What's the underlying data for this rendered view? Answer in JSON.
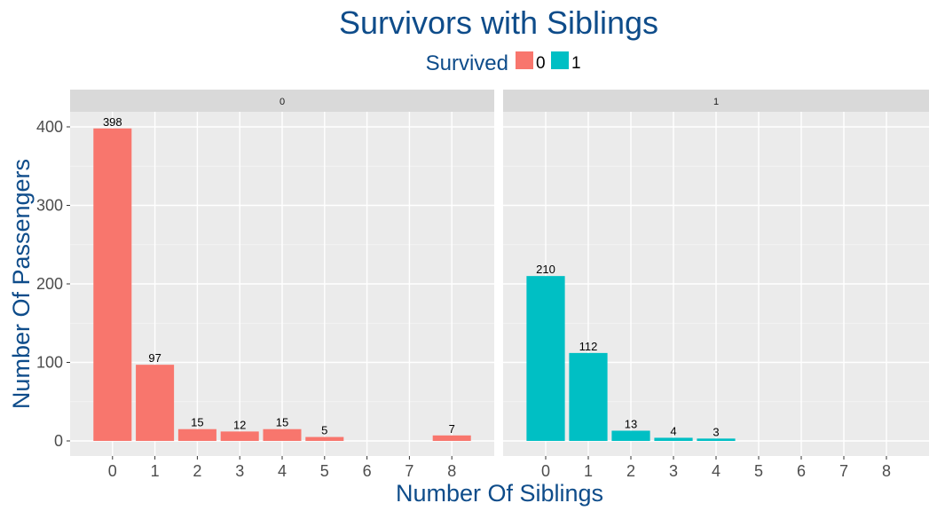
{
  "chart_data": {
    "type": "bar",
    "title": "Survivors with Siblings",
    "xlabel": "Number Of Siblings",
    "ylabel": "Number Of Passengers",
    "legend": {
      "title": "Survived",
      "placement": "top",
      "entries": [
        {
          "label": "0",
          "color": "#F8766D"
        },
        {
          "label": "1",
          "color": "#00BFC4"
        }
      ]
    },
    "categories": [
      "0",
      "1",
      "2",
      "3",
      "4",
      "5",
      "6",
      "7",
      "8"
    ],
    "ylim": [
      0,
      430
    ],
    "yticks": [
      0,
      100,
      200,
      300,
      400
    ],
    "grid": true,
    "panels": [
      {
        "strip": "0",
        "color": "#F8766D",
        "values": [
          398,
          97,
          15,
          12,
          15,
          5,
          null,
          null,
          7
        ],
        "labels": [
          "398",
          "97",
          "15",
          "12",
          "15",
          "5",
          "",
          "",
          "7"
        ]
      },
      {
        "strip": "1",
        "color": "#00BFC4",
        "values": [
          210,
          112,
          13,
          4,
          3,
          null,
          null,
          null,
          null
        ],
        "labels": [
          "210",
          "112",
          "13",
          "4",
          "3",
          "",
          "",
          "",
          ""
        ]
      }
    ]
  },
  "colors": {
    "title": "#0E4C8A",
    "panel_bg": "#EBEBEB",
    "strip_bg": "#D9D9D9",
    "grid": "#FFFFFF",
    "tick_text": "#4D4D4D"
  }
}
